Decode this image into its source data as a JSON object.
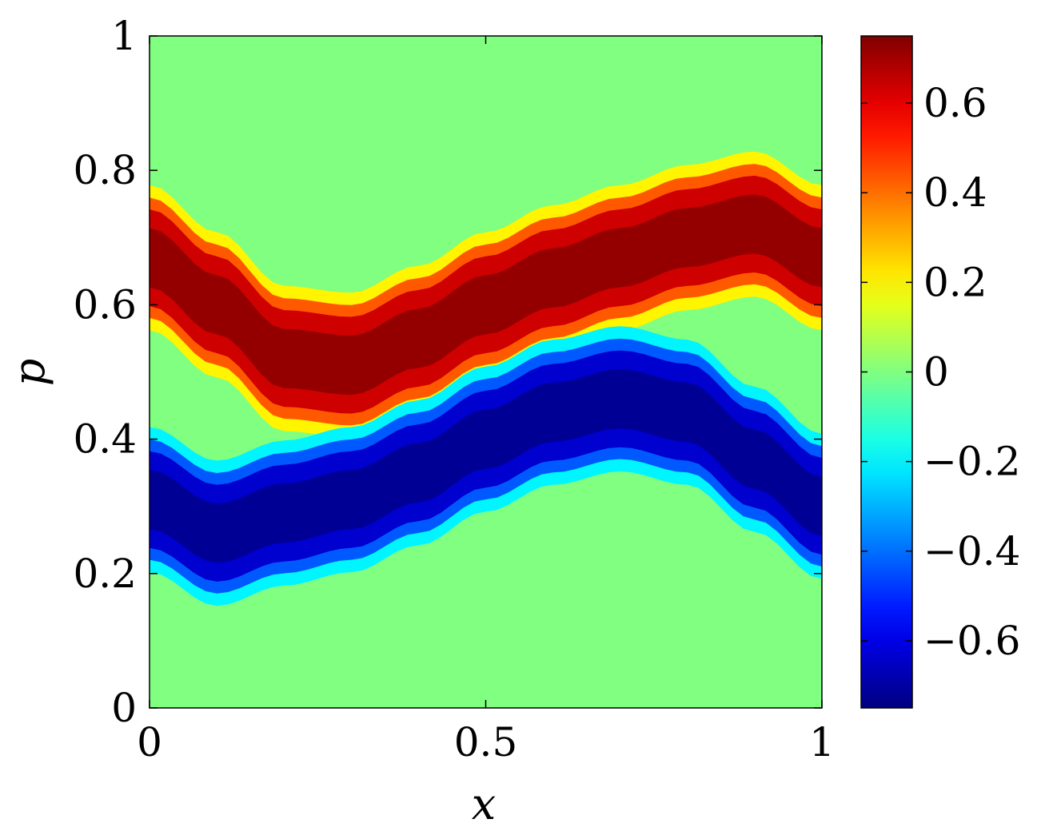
{
  "chart_data": {
    "type": "heatmap",
    "title": "",
    "xlabel": "x",
    "ylabel": "p",
    "xlim": [
      0,
      1
    ],
    "ylim": [
      0,
      1
    ],
    "x_ticks": [
      0,
      0.5,
      1
    ],
    "x_tick_labels": [
      "0",
      "0.5",
      "1"
    ],
    "y_ticks": [
      0,
      0.2,
      0.4,
      0.6,
      0.8,
      1
    ],
    "y_tick_labels": [
      "0",
      "0.2",
      "0.4",
      "0.6",
      "0.8",
      "1"
    ],
    "colorbar": {
      "colormap": "jet",
      "clim": [
        -0.75,
        0.75
      ],
      "ticks": [
        0.6,
        0.4,
        0.2,
        0,
        -0.2,
        -0.4,
        -0.6
      ],
      "tick_labels": [
        "0.6",
        "0.4",
        "0.2",
        "0",
        "−0.2",
        "−0.4",
        "−0.6"
      ]
    },
    "bands": [
      {
        "value": 0.72,
        "center_p": [
          [
            0.0,
            0.67
          ],
          [
            0.1,
            0.6
          ],
          [
            0.2,
            0.52
          ],
          [
            0.3,
            0.51
          ],
          [
            0.4,
            0.55
          ],
          [
            0.5,
            0.6
          ],
          [
            0.6,
            0.64
          ],
          [
            0.7,
            0.67
          ],
          [
            0.8,
            0.7
          ],
          [
            0.9,
            0.72
          ],
          [
            1.0,
            0.67
          ]
        ],
        "half_width_p": 0.08
      },
      {
        "value": -0.72,
        "center_p": [
          [
            0.0,
            0.31
          ],
          [
            0.1,
            0.26
          ],
          [
            0.2,
            0.29
          ],
          [
            0.3,
            0.31
          ],
          [
            0.4,
            0.35
          ],
          [
            0.5,
            0.4
          ],
          [
            0.6,
            0.44
          ],
          [
            0.7,
            0.46
          ],
          [
            0.8,
            0.44
          ],
          [
            0.9,
            0.37
          ],
          [
            1.0,
            0.3
          ]
        ],
        "half_width_p": 0.08
      }
    ],
    "background_value": 0.0
  }
}
